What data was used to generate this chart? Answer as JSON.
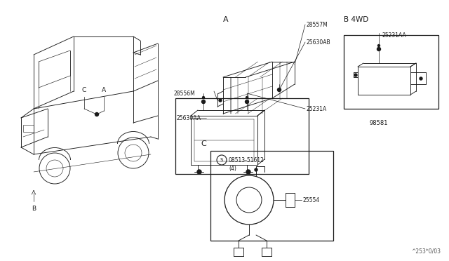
{
  "bg_color": "#ffffff",
  "line_color": "#1a1a1a",
  "fig_width": 6.4,
  "fig_height": 3.72,
  "dpi": 100,
  "watermark": "^253*0/03",
  "section_A_label": "A",
  "section_B4WD_label": "B 4WD",
  "section_C_label": "C",
  "label_28557M": "28557M",
  "label_25630AB": "25630AB",
  "label_28556M": "28556M",
  "label_25231A": "25231A",
  "label_25630AA": "25630AA",
  "label_25231AA": "25231AA",
  "label_98581": "98581",
  "label_part_num": "08513-51612",
  "label_qty": "(4)",
  "label_25554": "25554",
  "label_A": "A",
  "label_C": "C",
  "label_B": "B"
}
